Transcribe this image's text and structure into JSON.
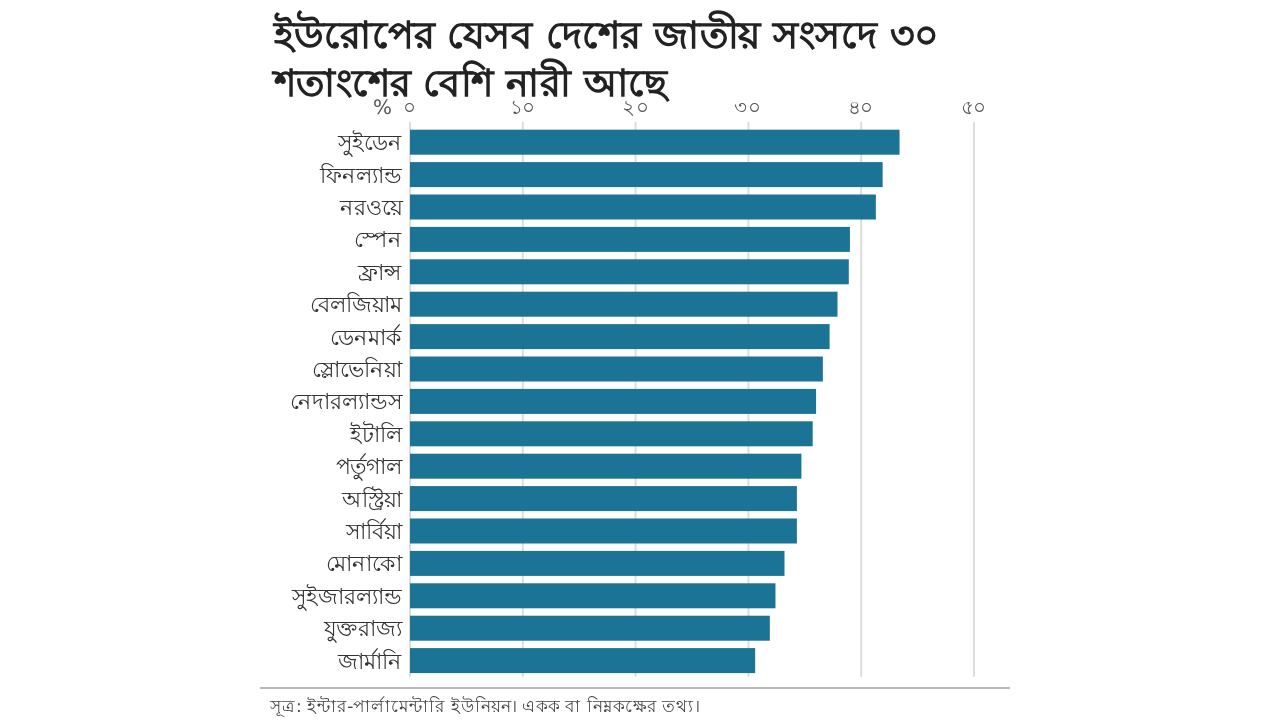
{
  "chart_data": {
    "type": "bar",
    "orientation": "horizontal",
    "title": "ইউরোপের যেসব দেশের জাতীয় সংসদে ৩০ শতাংশের বেশি নারী আছে",
    "xlabel": "%",
    "categories": [
      "সুইডেন",
      "ফিনল্যান্ড",
      "নরওয়ে",
      "স্পেন",
      "ফ্রান্স",
      "বেলজিয়াম",
      "ডেনমার্ক",
      "স্লোভেনিয়া",
      "নেদারল্যান্ডস",
      "ইটালি",
      "পর্তুগাল",
      "অস্ট্রিয়া",
      "সার্বিয়া",
      "মোনাকো",
      "সুইজারল্যান্ড",
      "যুক্তরাজ্য",
      "জার্মানি"
    ],
    "values": [
      43.4,
      41.9,
      41.3,
      39.0,
      38.9,
      37.9,
      37.2,
      36.6,
      36.0,
      35.7,
      34.7,
      34.3,
      34.3,
      33.2,
      32.4,
      31.9,
      30.6
    ],
    "color": "#1b7396",
    "xlim": [
      0,
      50
    ],
    "xticks": [
      {
        "value": 0,
        "label": "০"
      },
      {
        "value": 10,
        "label": "১০"
      },
      {
        "value": 20,
        "label": "২০"
      },
      {
        "value": 30,
        "label": "৩০"
      },
      {
        "value": 40,
        "label": "৪০"
      },
      {
        "value": 50,
        "label": "৫০"
      }
    ],
    "grid": "x",
    "annotations": [
      "সূত্র: ইন্টার-পার্লামেন্টারি ইউনিয়ন। একক বা নিম্নকক্ষের তথ্য।"
    ]
  }
}
